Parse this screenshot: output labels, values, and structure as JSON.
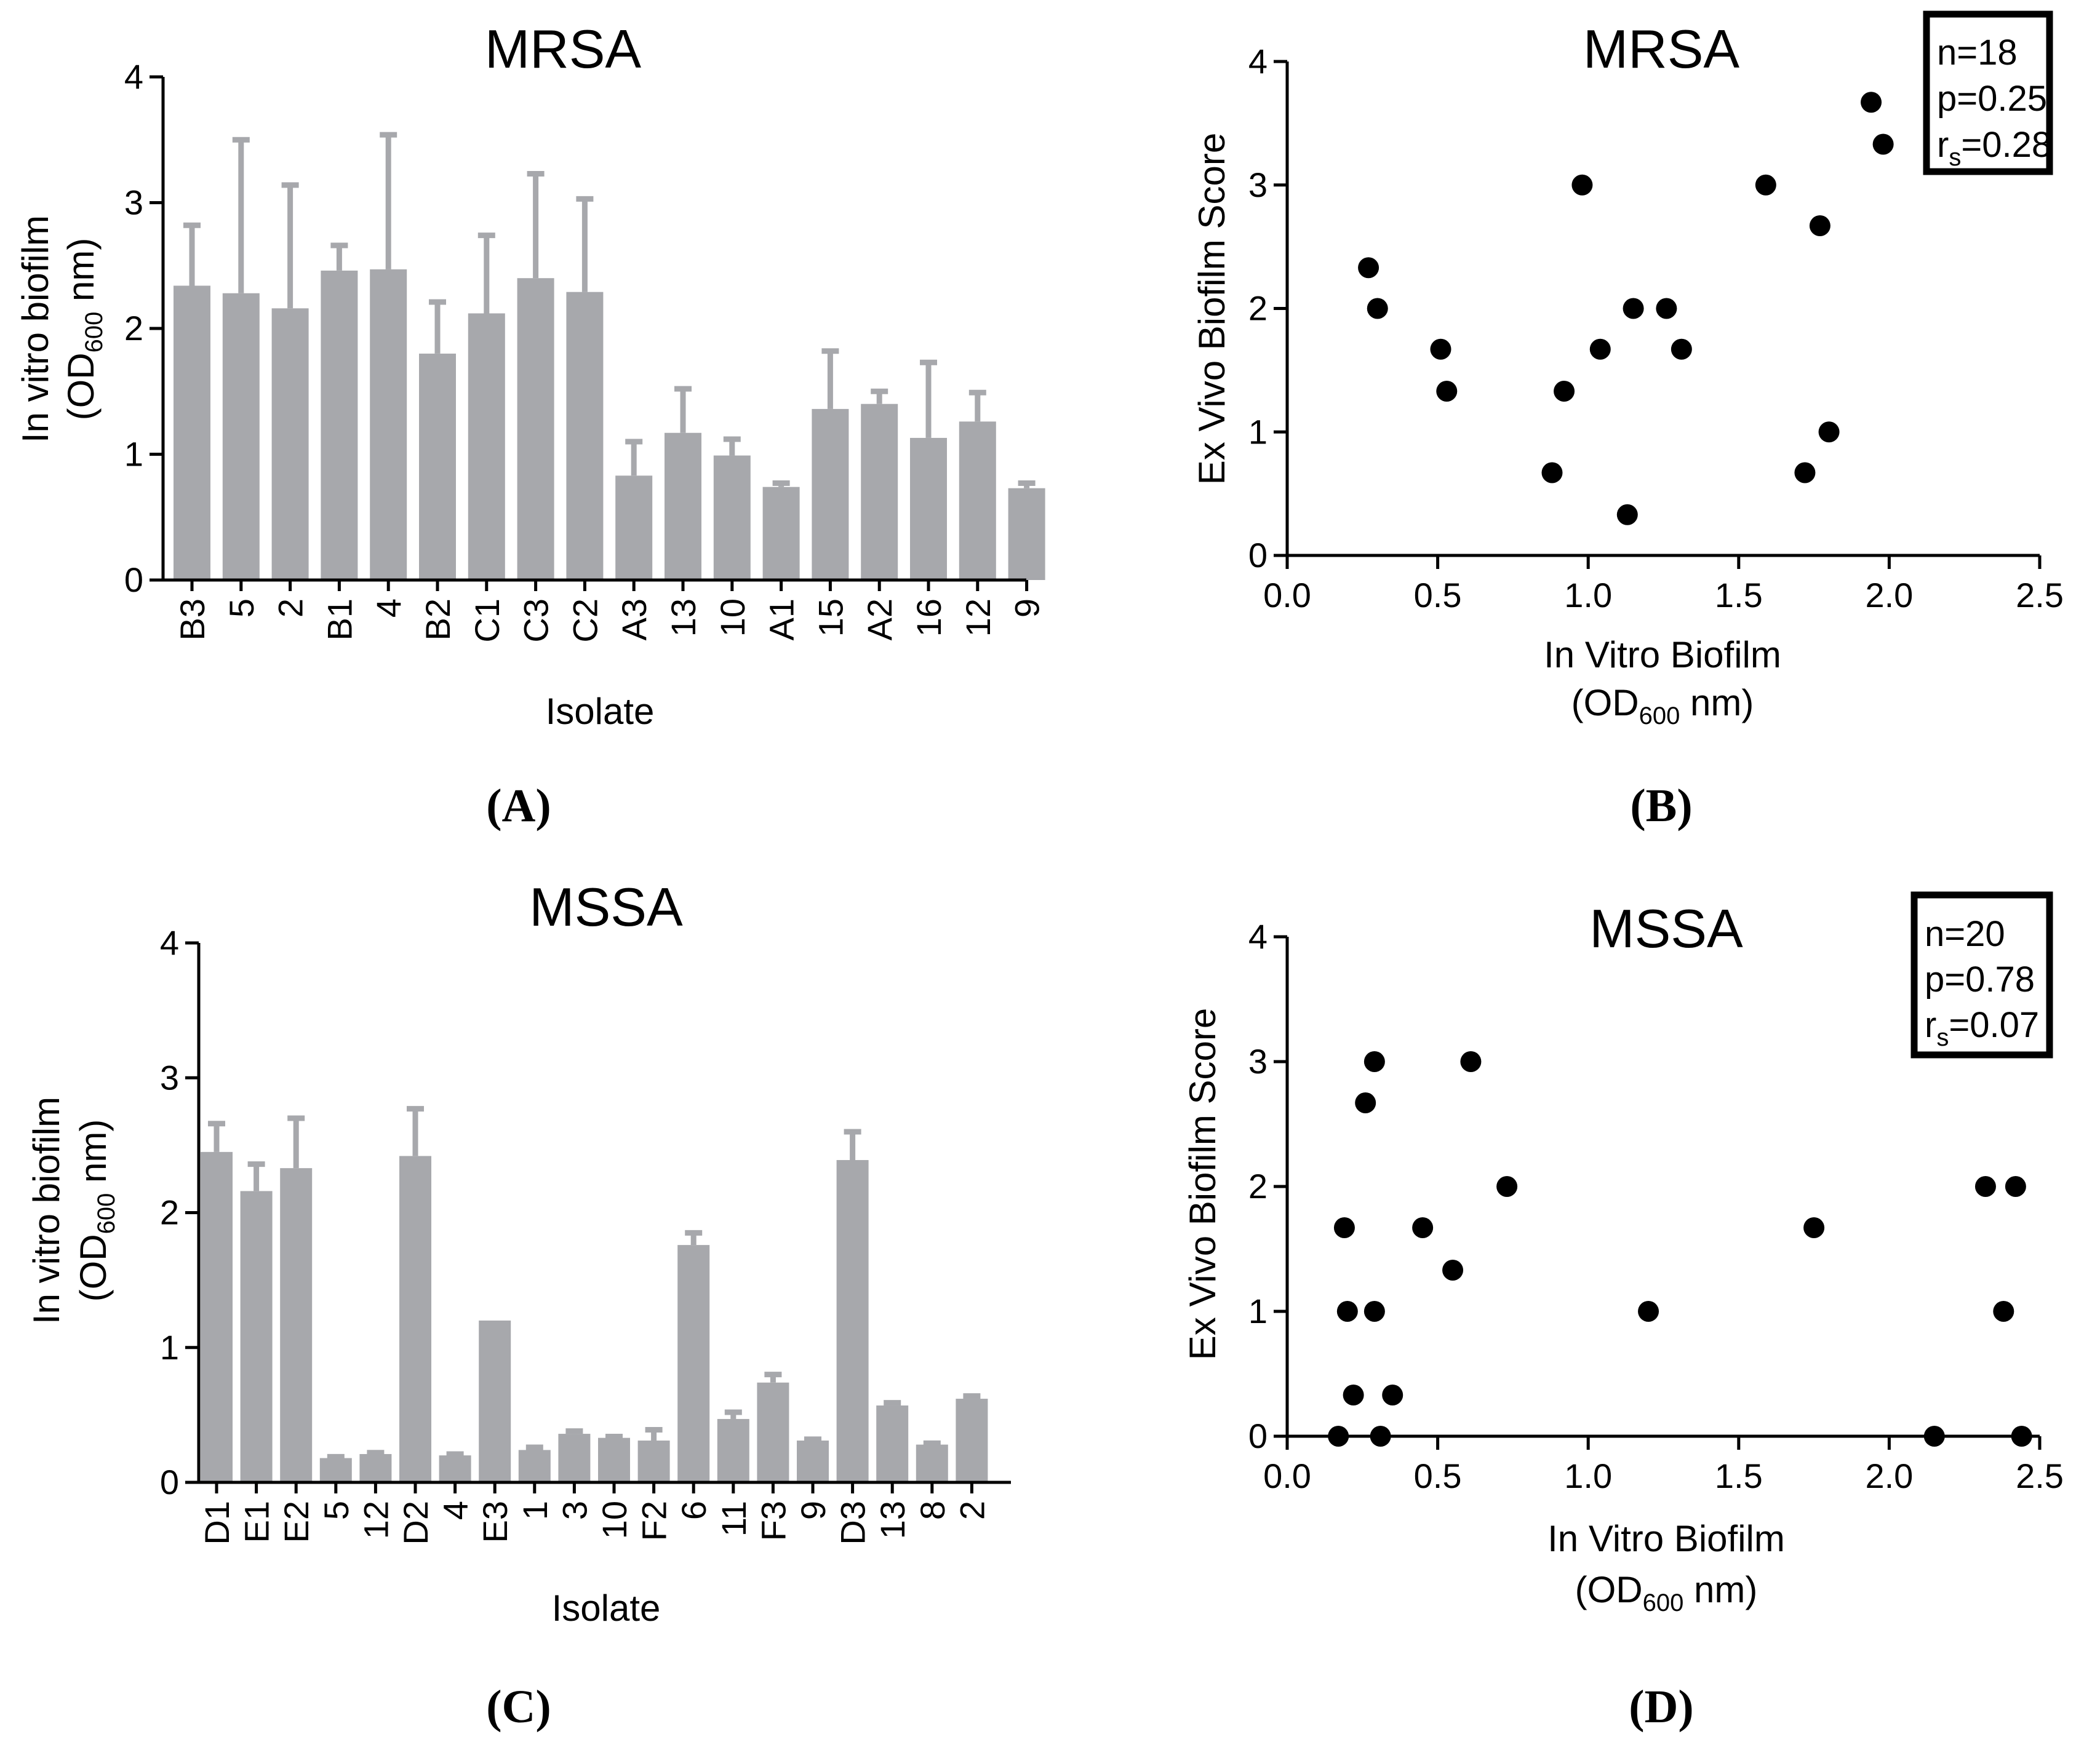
{
  "colors": {
    "bar": "#a7a8ac",
    "axis": "#000000",
    "point": "#000000"
  },
  "chart_data": [
    {
      "id": "A",
      "type": "bar",
      "panel_label": "(A)",
      "title": "MRSA",
      "xlabel": "Isolate",
      "ylabel_line1": "In vitro biofilm",
      "ylabel_line2_pre": "(OD",
      "ylabel_line2_sub": "600",
      "ylabel_line2_post": " nm)",
      "ylim": [
        0,
        4
      ],
      "yticks": [
        "0",
        "1",
        "2",
        "3",
        "4"
      ],
      "categories": [
        "B3",
        "5",
        "2",
        "B1",
        "4",
        "B2",
        "C1",
        "C3",
        "C2",
        "A3",
        "13",
        "10",
        "A1",
        "15",
        "A2",
        "16",
        "12",
        "9"
      ],
      "values": [
        2.34,
        2.28,
        2.16,
        2.46,
        2.47,
        1.8,
        2.12,
        2.4,
        2.29,
        0.83,
        1.17,
        0.99,
        0.74,
        1.36,
        1.4,
        1.13,
        1.26,
        0.73
      ],
      "errors": [
        0.48,
        1.22,
        0.98,
        0.2,
        1.07,
        0.41,
        0.62,
        0.83,
        0.74,
        0.27,
        0.35,
        0.13,
        0.03,
        0.46,
        0.1,
        0.6,
        0.23,
        0.04
      ]
    },
    {
      "id": "B",
      "type": "scatter",
      "panel_label": "(B)",
      "title": "MRSA",
      "xlabel_line1": "In Vitro Biofilm",
      "xlabel_line2_pre": "(OD",
      "xlabel_line2_sub": "600",
      "xlabel_line2_post": " nm)",
      "ylabel": "Ex Vivo Biofilm Score",
      "xlim": [
        0,
        2.5
      ],
      "ylim": [
        0,
        4
      ],
      "xticks": [
        "0.0",
        "0.5",
        "1.0",
        "1.5",
        "2.0",
        "2.5"
      ],
      "yticks": [
        "0",
        "1",
        "2",
        "3",
        "4"
      ],
      "stats": {
        "n": "n=18",
        "p": "p=0.25",
        "r_pre": "r",
        "r_sub": "s",
        "r_post": "=0.28"
      },
      "points": [
        [
          0.27,
          2.33
        ],
        [
          0.3,
          2.0
        ],
        [
          0.51,
          1.67
        ],
        [
          0.53,
          1.33
        ],
        [
          0.88,
          0.67
        ],
        [
          0.92,
          1.33
        ],
        [
          0.98,
          3.0
        ],
        [
          1.04,
          1.67
        ],
        [
          1.13,
          0.33
        ],
        [
          1.15,
          2.0
        ],
        [
          1.26,
          2.0
        ],
        [
          1.31,
          1.67
        ],
        [
          1.59,
          3.0
        ],
        [
          1.72,
          0.67
        ],
        [
          1.77,
          2.67
        ],
        [
          1.8,
          1.0
        ],
        [
          1.94,
          3.67
        ],
        [
          1.98,
          3.33
        ]
      ]
    },
    {
      "id": "C",
      "type": "bar",
      "panel_label": "(C)",
      "title": "MSSA",
      "xlabel": "Isolate",
      "ylabel_line1": "In vitro biofilm",
      "ylabel_line2_pre": "(OD",
      "ylabel_line2_sub": "600",
      "ylabel_line2_post": " nm)",
      "ylim": [
        0,
        4
      ],
      "yticks": [
        "0",
        "1",
        "2",
        "3",
        "4"
      ],
      "categories": [
        "D1",
        "E1",
        "E2",
        "5",
        "12",
        "D2",
        "4",
        "E3",
        "1",
        "3",
        "10",
        "F2",
        "6",
        "11",
        "F3",
        "9",
        "D3",
        "13",
        "8",
        "2"
      ],
      "values": [
        2.45,
        2.16,
        2.33,
        0.18,
        0.21,
        2.42,
        0.2,
        1.2,
        0.24,
        0.36,
        0.33,
        0.31,
        1.76,
        0.47,
        0.74,
        0.31,
        2.39,
        0.57,
        0.28,
        0.62
      ],
      "errors": [
        0.21,
        0.2,
        0.37,
        0.01,
        0.01,
        0.35,
        0.01,
        0.0,
        0.02,
        0.02,
        0.01,
        0.08,
        0.09,
        0.05,
        0.06,
        0.01,
        0.21,
        0.02,
        0.01,
        0.02
      ]
    },
    {
      "id": "D",
      "type": "scatter",
      "panel_label": "(D)",
      "title": "MSSA",
      "xlabel_line1": "In Vitro Biofilm",
      "xlabel_line2_pre": "(OD",
      "xlabel_line2_sub": "600",
      "xlabel_line2_post": " nm)",
      "ylabel": "Ex Vivo Biofilm Score",
      "xlim": [
        0,
        2.5
      ],
      "ylim": [
        0,
        4
      ],
      "xticks": [
        "0.0",
        "0.5",
        "1.0",
        "1.5",
        "2.0",
        "2.5"
      ],
      "yticks": [
        "0",
        "1",
        "2",
        "3",
        "4"
      ],
      "stats": {
        "n": "n=20",
        "p": "p=0.78",
        "r_pre": "r",
        "r_sub": "s",
        "r_post": "=0.07"
      },
      "points": [
        [
          0.17,
          0.0
        ],
        [
          0.19,
          1.67
        ],
        [
          0.2,
          1.0
        ],
        [
          0.22,
          0.33
        ],
        [
          0.26,
          2.67
        ],
        [
          0.29,
          1.0
        ],
        [
          0.29,
          3.0
        ],
        [
          0.31,
          0.0
        ],
        [
          0.35,
          0.33
        ],
        [
          0.45,
          1.67
        ],
        [
          0.55,
          1.33
        ],
        [
          0.61,
          3.0
        ],
        [
          0.73,
          2.0
        ],
        [
          1.2,
          1.0
        ],
        [
          1.75,
          1.67
        ],
        [
          2.15,
          0.0
        ],
        [
          2.32,
          2.0
        ],
        [
          2.38,
          1.0
        ],
        [
          2.42,
          2.0
        ],
        [
          2.44,
          0.0
        ]
      ]
    }
  ]
}
